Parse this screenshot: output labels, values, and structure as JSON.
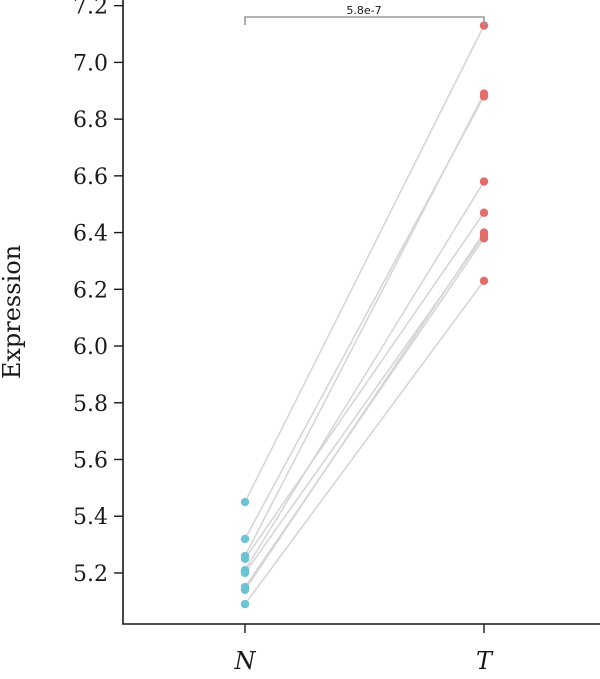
{
  "chart_data": {
    "type": "scatter",
    "subtype": "paired-dot",
    "ylabel": "Expression",
    "categories": [
      "N",
      "T"
    ],
    "ylim": [
      5.02,
      7.22
    ],
    "yticks": [
      "5.2",
      "5.4",
      "5.6",
      "5.8",
      "6.0",
      "6.2",
      "6.4",
      "6.6",
      "6.8",
      "7.0",
      "7.2"
    ],
    "grid": false,
    "pairs": [
      {
        "N": 5.45,
        "T": 7.13
      },
      {
        "N": 5.32,
        "T": 6.88
      },
      {
        "N": 5.26,
        "T": 6.89
      },
      {
        "N": 5.25,
        "T": 6.47
      },
      {
        "N": 5.21,
        "T": 6.58
      },
      {
        "N": 5.2,
        "T": 6.39
      },
      {
        "N": 5.15,
        "T": 6.38
      },
      {
        "N": 5.14,
        "T": 6.4
      },
      {
        "N": 5.09,
        "T": 6.23
      }
    ],
    "colors": {
      "N": "#6cc3d3",
      "T": "#e26d6b",
      "lines": "#d6d6d6"
    },
    "annotation": {
      "text": "5.8e-7",
      "between": [
        "N",
        "T"
      ]
    }
  }
}
